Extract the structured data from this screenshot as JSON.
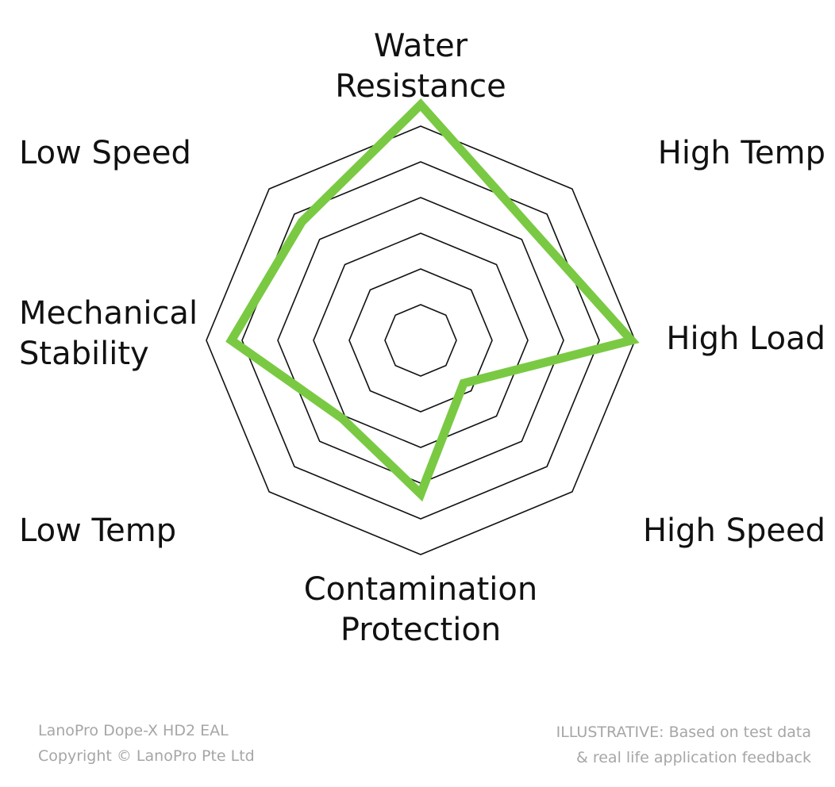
{
  "chart_data": {
    "type": "radar",
    "axes": [
      "Water Resistance",
      "High Temp",
      "High Load",
      "High Speed",
      "Contamination Protection",
      "Low Temp",
      "Mechanical Stability",
      "Low Speed"
    ],
    "axis_label_lines": [
      [
        "Water",
        "Resistance"
      ],
      [
        "High Temp"
      ],
      [
        "High Load"
      ],
      [
        "High Speed"
      ],
      [
        "Contamination",
        "Protection"
      ],
      [
        "Low Temp"
      ],
      [
        "Mechanical",
        "Stability"
      ],
      [
        "Low Speed"
      ]
    ],
    "rings": 6,
    "range": [
      0,
      6
    ],
    "series": [
      {
        "values": [
          6.6,
          4.4,
          5.9,
          1.7,
          4.3,
          3.1,
          5.3,
          4.7
        ]
      }
    ],
    "grid": true
  },
  "colors": {
    "series": "#7ac943",
    "grid": "#111111",
    "footer_text": "#a6a6a6"
  },
  "footer": {
    "product_line": "LanoPro Dope-X HD2 EAL",
    "copyright_line": "Copyright © LanoPro Pte Ltd",
    "note_line1": "ILLUSTRATIVE: Based on test data",
    "note_line2": "& real life application feedback"
  }
}
